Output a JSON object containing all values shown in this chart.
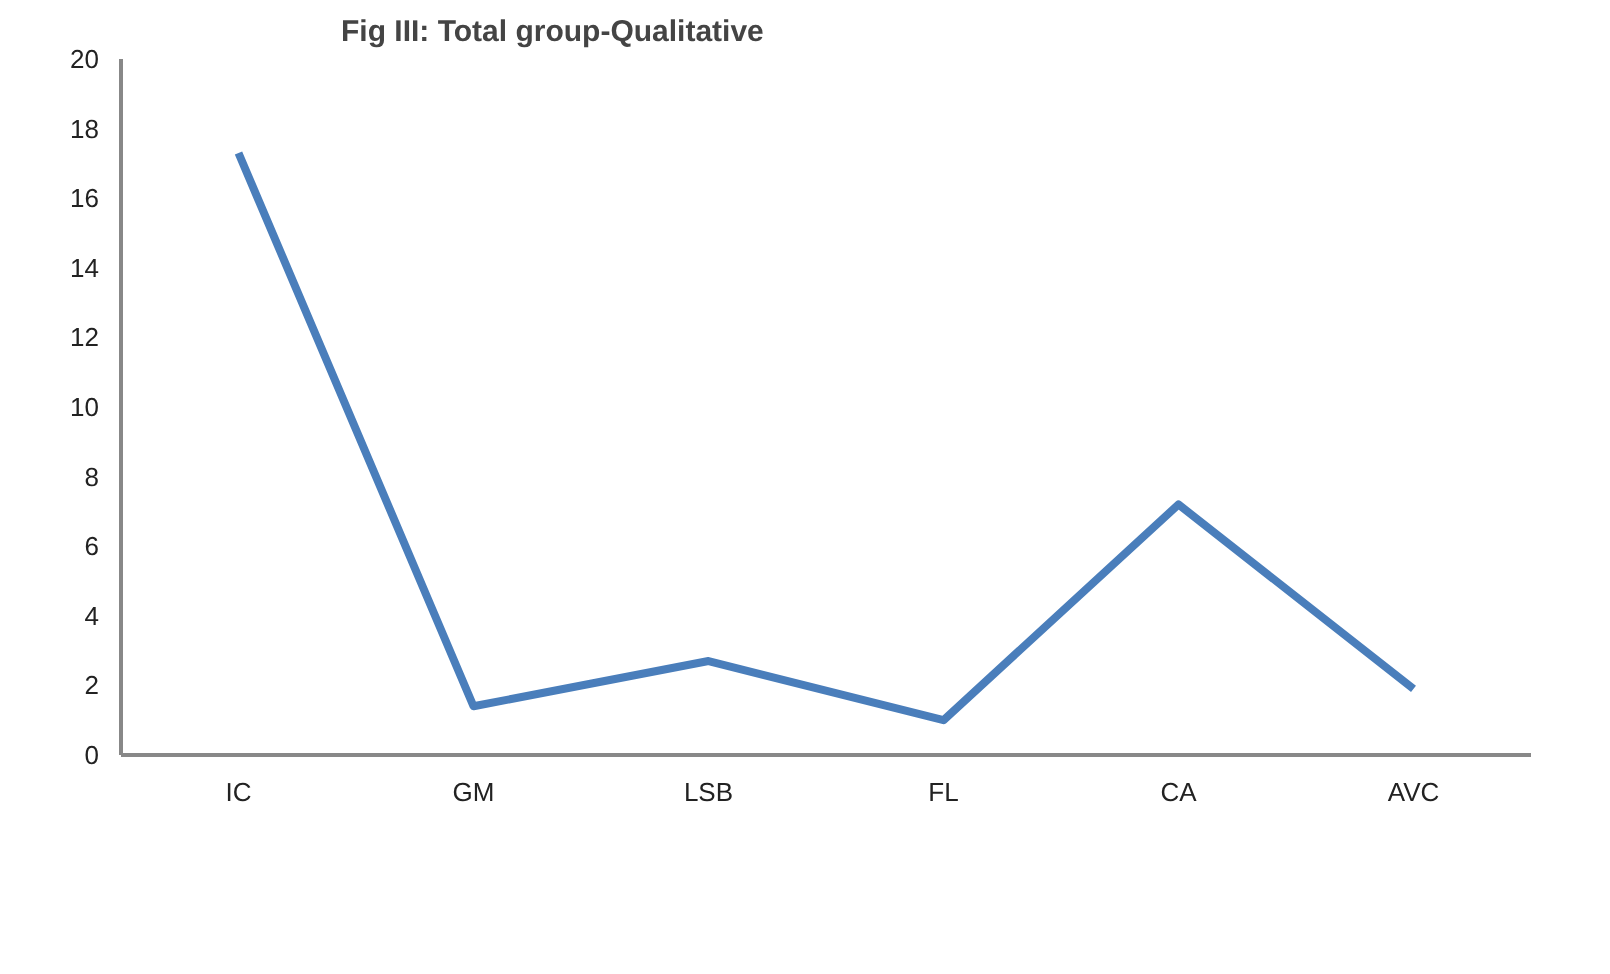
{
  "chart_data": {
    "type": "line",
    "title": "Fig III: Total group-Qualitative",
    "categories": [
      "IC",
      "GM",
      "LSB",
      "FL",
      "CA",
      "AVC"
    ],
    "series": [
      {
        "color": "#4a7ebb",
        "values": [
          17.3,
          1.4,
          2.7,
          1.0,
          7.2,
          1.9
        ]
      }
    ],
    "ylim": [
      0,
      20
    ],
    "yticks": [
      0,
      2,
      4,
      6,
      8,
      10,
      12,
      14,
      16,
      18,
      20
    ],
    "grid": false,
    "marker": "none",
    "line_style": "solid"
  }
}
